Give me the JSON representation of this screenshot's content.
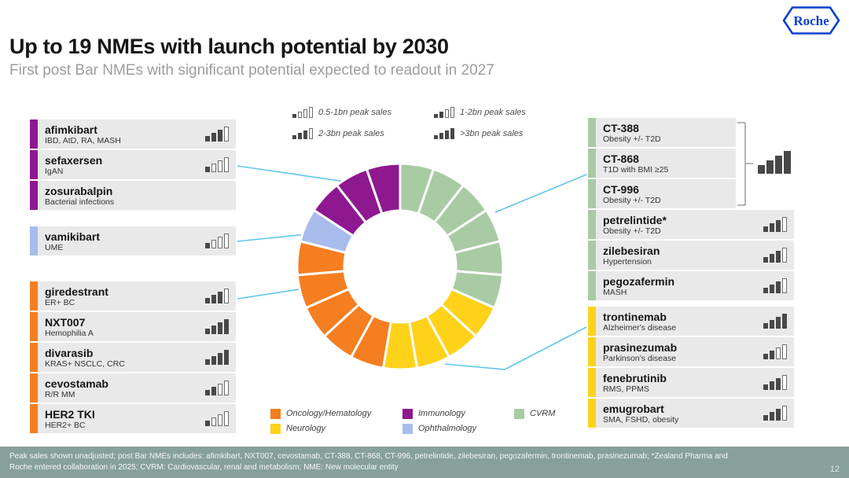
{
  "logo": {
    "text": "Roche"
  },
  "title": "Up to 19 NMEs with launch potential by 2030",
  "subtitle": "First post Bar NMEs with significant potential expected to readout in 2027",
  "page_number": "12",
  "footer": {
    "line1": "Peak sales shown unadjusted;  post Bar NMEs includes: afimkibart, NXT007, cevostamab, CT-388, CT-868, CT-996, petrelintide, zilebesiran, pegozafermin, trontinemab, prasinezumab; *Zealand Pharma and",
    "line2": "Roche entered collaboration in 2025; CVRM: Cardiovascular, renal and metabolism; NME: New molecular entity"
  },
  "colors": {
    "categories": {
      "oncology": "#F57E20",
      "neurology": "#FFD21A",
      "immunology": "#8E1890",
      "ophthalmology": "#A7BCEC",
      "cvrm": "#A8CBA3"
    },
    "connector": "#5FC6E8",
    "bar_filled": "#484848",
    "roche_blue": "#0B41CD"
  },
  "peak_sales_legend": [
    {
      "label": "0.5-1bn peak sales",
      "filled": 1
    },
    {
      "label": "1-2bn peak sales",
      "filled": 2
    },
    {
      "label": "2-3bn peak sales",
      "filled": 3
    },
    {
      "label": ">3bn peak sales",
      "filled": 4
    }
  ],
  "left_groups": [
    {
      "category": "immunology",
      "items": [
        {
          "name": "afimkibart",
          "indication": "IBD, AtD, RA, MASH",
          "bars": 3
        },
        {
          "name": "sefaxersen",
          "indication": "IgAN",
          "bars": 1
        },
        {
          "name": "zosurabalpin",
          "indication": "Bacterial infections",
          "bars": null
        }
      ]
    },
    {
      "category": "ophthalmology",
      "items": [
        {
          "name": "vamikibart",
          "indication": "UME",
          "bars": 1
        }
      ]
    },
    {
      "category": "oncology",
      "items": [
        {
          "name": "giredestrant",
          "indication": "ER+ BC",
          "bars": 3
        },
        {
          "name": "NXT007",
          "indication": "Hemophilia A",
          "bars": 4
        },
        {
          "name": "divarasib",
          "indication": "KRAS+ NSCLC, CRC",
          "bars": 4
        },
        {
          "name": "cevostamab",
          "indication": "R/R MM",
          "bars": 2
        },
        {
          "name": "HER2 TKI",
          "indication": "HER2+ BC",
          "bars": 1
        }
      ]
    }
  ],
  "right_groups": [
    {
      "category": "cvrm",
      "bracket": {
        "rows": 3,
        "bars": 4
      },
      "items": [
        {
          "name": "CT-388",
          "indication": "Obesity +/- T2D",
          "bars": null,
          "narrow": true
        },
        {
          "name": "CT-868",
          "indication": "T1D with BMI ≥25",
          "bars": null,
          "narrow": true
        },
        {
          "name": "CT-996",
          "indication": "Obesity +/- T2D",
          "bars": null,
          "narrow": true
        },
        {
          "name": "petrelintide*",
          "indication": "Obesity +/- T2D",
          "bars": 3
        },
        {
          "name": "zilebesiran",
          "indication": "Hypertension",
          "bars": 3
        },
        {
          "name": "pegozafermin",
          "indication": "MASH",
          "bars": 3
        }
      ]
    },
    {
      "category": "neurology",
      "items": [
        {
          "name": "trontinemab",
          "indication": "Alzheimer's disease",
          "bars": 4
        },
        {
          "name": "prasinezumab",
          "indication": "Parkinson's disease",
          "bars": 2
        },
        {
          "name": "fenebrutinib",
          "indication": "RMS, PPMS",
          "bars": 3
        },
        {
          "name": "emugrobart",
          "indication": "SMA, FSHD, obesity",
          "bars": 3
        }
      ]
    }
  ],
  "category_legend": [
    {
      "label": "Oncology/Hematology",
      "category": "oncology",
      "col": 1,
      "row": 1
    },
    {
      "label": "Neurology",
      "category": "neurology",
      "col": 1,
      "row": 2
    },
    {
      "label": "Immunology",
      "category": "immunology",
      "col": 2,
      "row": 1
    },
    {
      "label": "Ophthalmology",
      "category": "ophthalmology",
      "col": 2,
      "row": 2
    },
    {
      "label": "CVRM",
      "category": "cvrm",
      "col": 3,
      "row": 1
    }
  ],
  "chart_data": {
    "type": "donut",
    "total_segments": 19,
    "segments_clockwise_from_top": [
      {
        "category": "CVRM",
        "count": 6,
        "color": "#A8CBA3"
      },
      {
        "category": "Neurology",
        "count": 4,
        "color": "#FFD21A"
      },
      {
        "category": "Oncology/Hematology",
        "count": 5,
        "color": "#F57E20"
      },
      {
        "category": "Ophthalmology",
        "count": 1,
        "color": "#A7BCEC"
      },
      {
        "category": "Immunology",
        "count": 3,
        "color": "#8E1890"
      }
    ]
  }
}
